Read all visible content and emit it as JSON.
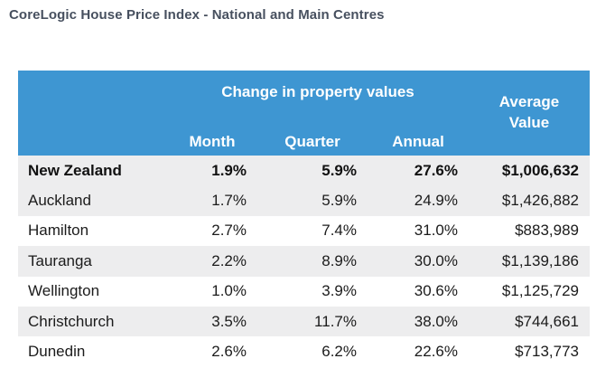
{
  "title": "CoreLogic House Price Index - National and Main Centres",
  "colors": {
    "header_bg": "#3e96d2",
    "header_text": "#ffffff",
    "shaded_row_bg": "#ededee",
    "body_text": "#1b1b1b",
    "title_text": "#47505f"
  },
  "chart_data": {
    "type": "table",
    "title": "CoreLogic House Price Index - National and Main Centres",
    "column_group_label": "Change in property values",
    "sub_columns": [
      "Month",
      "Quarter",
      "Annual"
    ],
    "value_column": "Average Value",
    "rows": [
      {
        "name": "New Zealand",
        "month": "1.9%",
        "quarter": "5.9%",
        "annual": "27.6%",
        "average_value": "$1,006,632"
      },
      {
        "name": "Auckland",
        "month": "1.7%",
        "quarter": "5.9%",
        "annual": "24.9%",
        "average_value": "$1,426,882"
      },
      {
        "name": "Hamilton",
        "month": "2.7%",
        "quarter": "7.4%",
        "annual": "31.0%",
        "average_value": "$883,989"
      },
      {
        "name": "Tauranga",
        "month": "2.2%",
        "quarter": "8.9%",
        "annual": "30.0%",
        "average_value": "$1,139,186"
      },
      {
        "name": "Wellington",
        "month": "1.0%",
        "quarter": "3.9%",
        "annual": "30.6%",
        "average_value": "$1,125,729"
      },
      {
        "name": "Christchurch",
        "month": "3.5%",
        "quarter": "11.7%",
        "annual": "38.0%",
        "average_value": "$744,661"
      },
      {
        "name": "Dunedin",
        "month": "2.6%",
        "quarter": "6.2%",
        "annual": "22.6%",
        "average_value": "$713,773"
      }
    ]
  }
}
